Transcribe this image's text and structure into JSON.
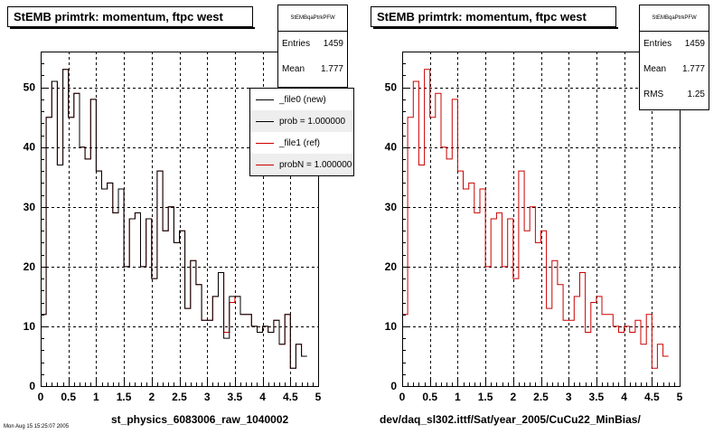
{
  "chart_data": [
    {
      "type": "histogram-step",
      "title": "StEMB primtrk: momentum, ftpc west",
      "xlabel": "st_physics_6083006_raw_1040002",
      "xlim": [
        0,
        5
      ],
      "ylim": [
        0,
        56
      ],
      "xticks": [
        "0",
        "0.5",
        "1",
        "1.5",
        "2",
        "2.5",
        "3",
        "3.5",
        "4",
        "4.5",
        "5"
      ],
      "yticks": [
        "0",
        "10",
        "20",
        "30",
        "40",
        "50"
      ],
      "grid": true,
      "stats": {
        "name": "StEMBqaPtrkPFW",
        "entries_label": "Entries",
        "entries": "1459",
        "mean_label": "Mean",
        "mean": "1.777"
      },
      "legend": {
        "placement": "top-right",
        "entries": [
          {
            "label": "_file0 (new)",
            "color": "#000000"
          },
          {
            "label": "prob = 1.000000",
            "color": "#000000"
          },
          {
            "label": "_file1 (ref)",
            "color": "#cc0000"
          },
          {
            "label": "probN = 1.000000",
            "color": "#cc0000"
          }
        ]
      },
      "bins_edges_start": 0,
      "bin_width": 0.1,
      "series": [
        {
          "color": "#cc0000",
          "values": [
            12,
            45,
            51,
            37,
            53,
            45,
            49,
            40,
            38,
            48,
            36,
            33,
            34,
            29,
            33,
            20,
            28,
            29,
            20,
            28,
            18,
            36,
            26,
            30,
            24,
            26,
            13,
            21,
            17,
            11,
            11,
            15,
            19,
            9,
            14,
            15,
            12,
            12,
            10,
            9,
            10,
            9,
            11,
            7,
            12,
            3,
            7,
            5
          ]
        },
        {
          "color": "#000000",
          "values": [
            12,
            45,
            51,
            37,
            53,
            45,
            49,
            40,
            38,
            48,
            36,
            33,
            34,
            29,
            33,
            20,
            28,
            29,
            20,
            28,
            18,
            36,
            26,
            30,
            24,
            26,
            13,
            21,
            17,
            11,
            11,
            15,
            19,
            8,
            15,
            15,
            12,
            12,
            10,
            9,
            10,
            9,
            11,
            7,
            12,
            3,
            7,
            5
          ]
        }
      ]
    },
    {
      "type": "histogram-step",
      "title": "StEMB primtrk: momentum, ftpc west",
      "xlabel": "dev/daq_sl302.ittf/Sat/year_2005/CuCu22_MinBias/",
      "xlim": [
        0,
        5
      ],
      "ylim": [
        0,
        56
      ],
      "xticks": [
        "0",
        "0.5",
        "1",
        "1.5",
        "2",
        "2.5",
        "3",
        "3.5",
        "4",
        "4.5",
        "5"
      ],
      "yticks": [
        "0",
        "10",
        "20",
        "30",
        "40",
        "50"
      ],
      "grid": true,
      "stats": {
        "name": "StEMBqaPtrkPFW",
        "entries_label": "Entries",
        "entries": "1459",
        "mean_label": "Mean",
        "mean": "1.777",
        "rms_label": "RMS",
        "rms": "1.25"
      },
      "bins_edges_start": 0,
      "bin_width": 0.1,
      "series": [
        {
          "color": "#cc0000",
          "values": [
            12,
            45,
            51,
            37,
            53,
            45,
            49,
            40,
            38,
            48,
            36,
            33,
            34,
            29,
            33,
            20,
            28,
            29,
            20,
            28,
            18,
            36,
            26,
            30,
            24,
            26,
            13,
            21,
            17,
            11,
            11,
            15,
            19,
            9,
            14,
            15,
            12,
            12,
            10,
            9,
            10,
            9,
            11,
            7,
            12,
            3,
            7,
            5
          ]
        }
      ]
    }
  ],
  "footer_text": "Mon Aug 15 15:25:07 2005"
}
